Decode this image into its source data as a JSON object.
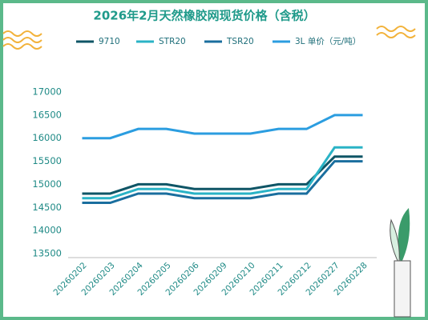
{
  "chart_data": {
    "type": "line",
    "title": "2026年2月天然橡胶网现货价格（含税）",
    "categories": [
      "20260202",
      "20260203",
      "20260204",
      "20260205",
      "20260206",
      "20260209",
      "20260210",
      "20260211",
      "20260212",
      "20260227",
      "20260228"
    ],
    "series": [
      {
        "name": "9710",
        "color": "#0f5566",
        "values": [
          14800,
          14800,
          15000,
          15000,
          14900,
          14900,
          14900,
          15000,
          15000,
          15600,
          15600
        ]
      },
      {
        "name": "STR20",
        "color": "#2ab3c6",
        "values": [
          14700,
          14700,
          14900,
          14900,
          14800,
          14800,
          14800,
          14900,
          14900,
          15800,
          15800
        ]
      },
      {
        "name": "TSR20",
        "color": "#1a6e9e",
        "values": [
          14600,
          14600,
          14800,
          14800,
          14700,
          14700,
          14700,
          14800,
          14800,
          15500,
          15500
        ]
      },
      {
        "name": "3L 单价（元/吨）",
        "color": "#2b9de0",
        "values": [
          16000,
          16000,
          16200,
          16200,
          16100,
          16100,
          16100,
          16200,
          16200,
          16500,
          16500
        ]
      }
    ],
    "ylim": [
      13500,
      17000
    ],
    "yticks": [
      13500,
      14000,
      14500,
      15000,
      15500,
      16000,
      16500,
      17000
    ],
    "grid": false
  }
}
